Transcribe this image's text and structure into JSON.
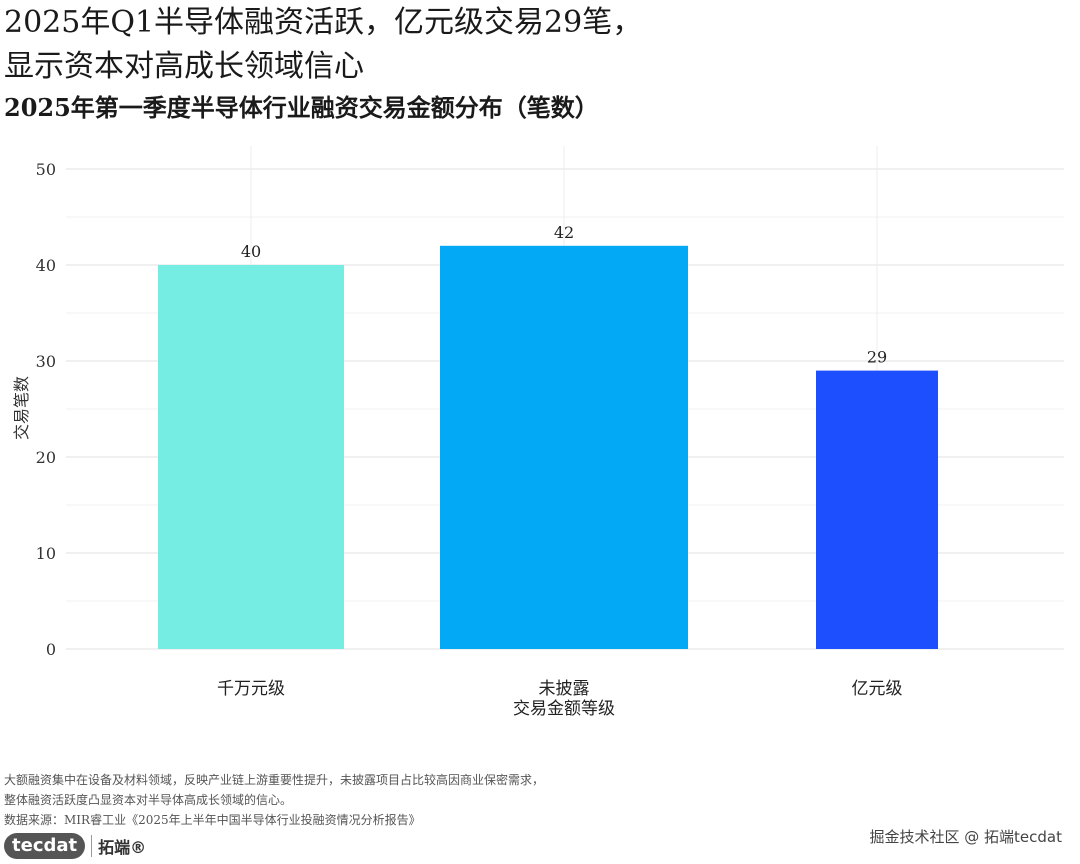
{
  "chart_data": {
    "type": "bar",
    "title_lines": [
      "2025年Q1半导体融资活跃，亿元级交易29笔，",
      "显示资本对高成长领域信心"
    ],
    "subtitle": "2025年第一季度半导体行业融资交易金额分布（笔数）",
    "categories": [
      "千万元级",
      "未披露",
      "亿元级"
    ],
    "values": [
      40,
      42,
      29
    ],
    "bar_colors": [
      "#76EDE3",
      "#03A9F4",
      "#1E4FFF"
    ],
    "xlabel": "交易金额等级",
    "ylabel": "交易笔数",
    "ylim": [
      0,
      52
    ],
    "yticks": [
      0,
      10,
      20,
      30,
      40,
      50
    ],
    "grid": true
  },
  "notes": [
    "大额融资集中在设备及材料领域，反映产业链上游重要性提升，未披露项目占比较高因商业保密需求，",
    "整体融资活跃度凸显资本对半导体高成长领域的信心。",
    "数据来源：MIR睿工业《2025年上半年中国半导体行业投融资情况分析报告》"
  ],
  "logo": {
    "badge": "tecdat",
    "name": "拓端®"
  },
  "watermark": "掘金技术社区 @ 拓端tecdat"
}
